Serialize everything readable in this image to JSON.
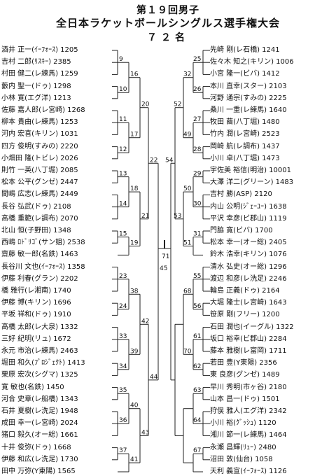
{
  "title": {
    "line1": "第１９回男子",
    "line2": "全日本ラケットボールシングルス選手権大会",
    "line3": "７２名"
  },
  "left_players": [
    "酒井 正一(ｲｰﾌｫｰｽ) 1205",
    "吉村 二郎(ﾘｽｷｰ) 2385",
    "村田 健二(レ練馬) 1259",
    "藪内 聖一(ドゥ) 1298",
    "小林 寛(エグ洋) 1213",
    "佐藤 嘉人郎(レ宮崎) 1268",
    "柳本 貴由(レ練馬) 1253",
    "河内 宏喜(キリン) 1031",
    "四方 俊明(すみの) 2220",
    "小畑田 隆(トビレ) 2026",
    "則竹 一英(八丁堀) 2085",
    "松本 公平(グンゼ) 2447",
    "間嶋 広志(レ練馬) 2449",
    "長谷 弘武(ドゥ) 2108",
    "髙橋 重範(レ調布) 2070",
    "北山 恒(子野田) 1348",
    "西嶋 ﾛﾄﾞﾘｺﾞ(サン姐) 2538",
    "齋藤 敏一郎(名鉄) 1463",
    "長谷川 文也(ｲｰﾌｫｰｽ) 1358",
    "伊藤 利春(グラン) 2202",
    "橋 雅行(レ湘南) 1740",
    "伊藤 博(キリン) 1696",
    "平坂 祥和(ドゥ) 1910",
    "高橋 太郎(レ大泉) 1332",
    "三好 紀明(リュ) 1672",
    "永元 市治(レ練馬) 2463",
    "堀田 和久(ﾌﾟﾛｼﾞｪｸﾄ) 1413",
    "栗原 宏次(シグマ) 1325",
    "寛 敏也(名鉄) 1450",
    "河合 史章(レ船橋) 1343",
    "石井 夏樹(レ洗足) 1948",
    "成田 幸一(レ宮崎) 2024",
    "猪口 毅久(オー総) 1661",
    "十井 俊弥(ドゥ) 1668",
    "伊藤 和広(レ洗足) 1730",
    "田中 万弥(Y東陽) 1565"
  ],
  "right_players": [
    "先崎 剛(レ石橋) 1241",
    "佐々木 知之(キリン) 1006",
    "小宮 隆一(ビバ) 1412",
    "本川 直幸(スター) 2103",
    "河野 通宗(すみの) 2225",
    "桑川 一重(レ練馬) 1640",
    "牧田 繭(八丁堀) 1480",
    "竹内 潤(レ宮崎) 2523",
    "岡崎 航(レ調布) 1437",
    "小川 卓(八丁堀) 1473",
    "宇佐美 裕信(明治) 10001",
    "大澤 洋二(グリーン) 1483",
    "吉村 勝(ASP) 2120",
    "内山 公明(ｼﾞｪｰﾕｰ) 1638",
    "平沢 幸彦(ビ郡山) 1119",
    "門脇 寛(ビバ) 1700",
    "松本 幸一(オー総) 2405",
    "鈴木 浩幸(キリン) 1076",
    "清水 弘史(オー総) 1296",
    "渡辺 和彦(レ洗足) 2246",
    "輪島 正義(ドゥ) 2164",
    "大堀 隆士(レ宮崎) 1643",
    "笹原 剛(フリー) 1200",
    "石田 潤也(イーグル) 1322",
    "坂口 裕幸(ビ郡山) 2284",
    "藤本 雅樹(レ富岡) 1711",
    "若田 豊(Y東陽) 2356",
    "東 良彦(グンゼ) 1489",
    "早川 秀明(市ヶ谷) 2180",
    "山本 昌一(ドゥ) 1501",
    "狩俣 雅人(エグ洋) 2342",
    "小川 裕(ｸﾞｯｼｭ) 1120",
    "湘川 節一(レ練馬) 1464",
    "永瀬 昌輝(ﾘｭｰ) 2480",
    "沼田 敦(仙台) 1058",
    "天利 義宣(ｲｰﾌｫｰｽ) 1126"
  ],
  "left_match_numbers": [
    "9",
    "10",
    "11",
    "12",
    "13",
    "14",
    "15",
    "16",
    "17",
    "18",
    "19",
    "20",
    "21",
    "22",
    "23",
    "24",
    "33",
    "34",
    "35",
    "36",
    "37",
    "38",
    "39",
    "40",
    "41",
    "42",
    "43",
    "44",
    "45",
    "46",
    "47",
    "48",
    "57",
    "58",
    "59",
    "60",
    "65",
    "66",
    "69"
  ],
  "right_match_numbers": [
    "25",
    "26",
    "27",
    "28",
    "29",
    "30",
    "31",
    "32",
    "49",
    "50",
    "51",
    "52",
    "53",
    "54",
    "55",
    "56",
    "61",
    "62",
    "63",
    "64",
    "67",
    "68",
    "70"
  ],
  "center_match_number": "71"
}
